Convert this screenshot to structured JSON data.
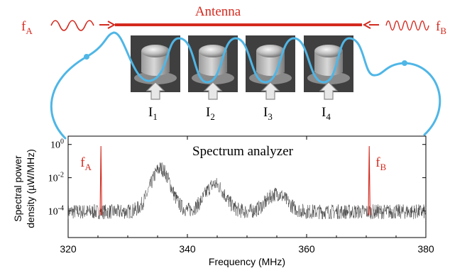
{
  "colors": {
    "red": "#d42a1f",
    "wire": "#4fb6e6",
    "trace": "#3a3a3a",
    "photo_bg": "#3f3f3f",
    "arrow_fill": "#e7e7e7",
    "arrow_stroke": "#8c8c8c"
  },
  "antenna": {
    "label": "Antenna",
    "left_freq": "f",
    "left_freq_sub": "A",
    "right_freq": "f",
    "right_freq_sub": "B"
  },
  "oscillators": [
    {
      "current": "I",
      "sub": "1",
      "icon": "nanopillar-photo"
    },
    {
      "current": "I",
      "sub": "2",
      "icon": "nanopillar-photo"
    },
    {
      "current": "I",
      "sub": "3",
      "icon": "nanopillar-photo"
    },
    {
      "current": "I",
      "sub": "4",
      "icon": "nanopillar-photo"
    }
  ],
  "chart_data": {
    "type": "line",
    "title": "Spectrum analyzer",
    "xlabel": "Frequency (MHz)",
    "ylabel_line1": "Spectral power",
    "ylabel_line2": "density (µW/MHz)",
    "xlim": [
      320,
      380
    ],
    "ylim_log10": [
      -5.6,
      0.5
    ],
    "y_scale": "log",
    "x_ticks": [
      320,
      340,
      360,
      380
    ],
    "y_ticks": [
      {
        "base": "10",
        "exp": "0"
      },
      {
        "base": "10",
        "exp": "-2"
      },
      {
        "base": "10",
        "exp": "-4"
      }
    ],
    "noise_floor": 0.0001,
    "broad_peaks": [
      {
        "x": 335.5,
        "y": 0.04
      },
      {
        "x": 344.6,
        "y": 0.0045
      },
      {
        "x": 355.0,
        "y": 0.0012
      }
    ],
    "signals": [
      {
        "name": "f",
        "sub": "A",
        "x": 325.5,
        "y": 2.0,
        "label_side": "left"
      },
      {
        "name": "f",
        "sub": "B",
        "x": 370.5,
        "y": 2.0,
        "label_side": "right"
      }
    ]
  }
}
